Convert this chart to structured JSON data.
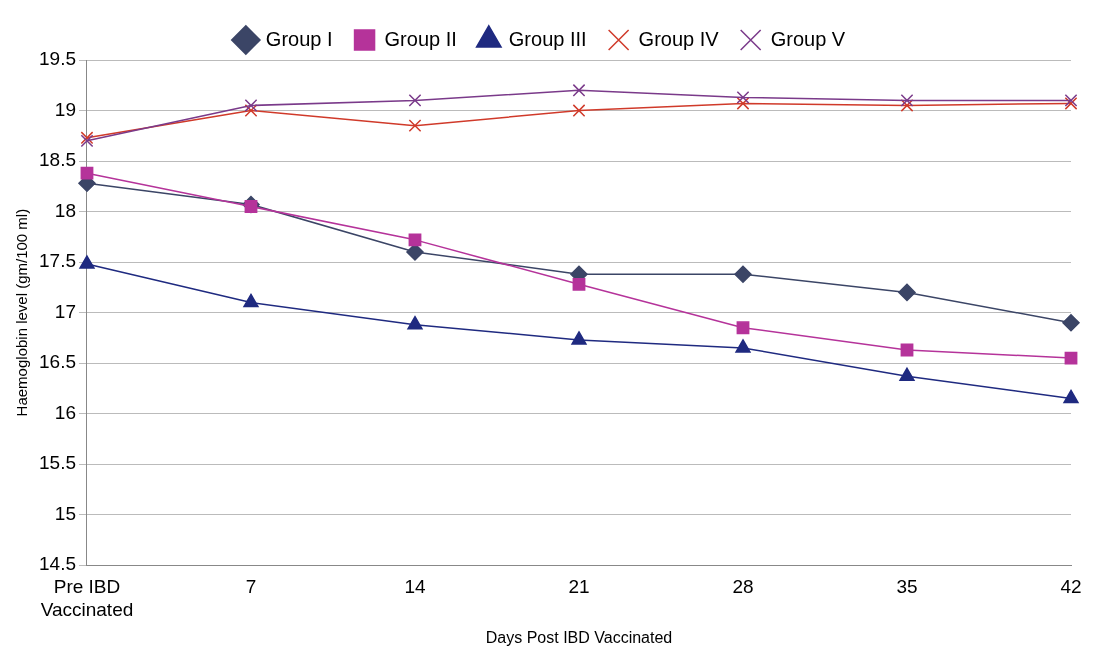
{
  "chart_data": {
    "type": "line",
    "xlabel": "Days Post IBD Vaccinated",
    "ylabel": "Haemoglobin level (gm/100 ml)",
    "categories": [
      "Pre IBD\nVaccinated",
      "7",
      "14",
      "21",
      "28",
      "35",
      "42"
    ],
    "series": [
      {
        "name": "Group I",
        "color": "#3b4566",
        "marker": "diamond",
        "values": [
          18.28,
          18.07,
          17.6,
          17.38,
          17.38,
          17.2,
          16.9
        ]
      },
      {
        "name": "Group II",
        "color": "#b5339a",
        "marker": "square",
        "values": [
          18.38,
          18.05,
          17.72,
          17.28,
          16.85,
          16.63,
          16.55
        ]
      },
      {
        "name": "Group III",
        "color": "#1f2a80",
        "marker": "triangle",
        "values": [
          17.48,
          17.1,
          16.88,
          16.73,
          16.65,
          16.37,
          16.15
        ]
      },
      {
        "name": "Group IV",
        "color": "#d03a2a",
        "marker": "cross",
        "values": [
          18.73,
          19.0,
          18.85,
          19.0,
          19.07,
          19.05,
          19.07
        ]
      },
      {
        "name": "Group V",
        "color": "#7a3a8a",
        "marker": "cross",
        "values": [
          18.7,
          19.05,
          19.1,
          19.2,
          19.13,
          19.1,
          19.1
        ]
      }
    ],
    "ylim": [
      14.5,
      19.5
    ],
    "yticks": [
      14.5,
      15,
      15.5,
      16,
      16.5,
      17,
      17.5,
      18,
      18.5,
      19,
      19.5
    ],
    "grid": "y",
    "legend": "top",
    "line_style": "solid"
  }
}
